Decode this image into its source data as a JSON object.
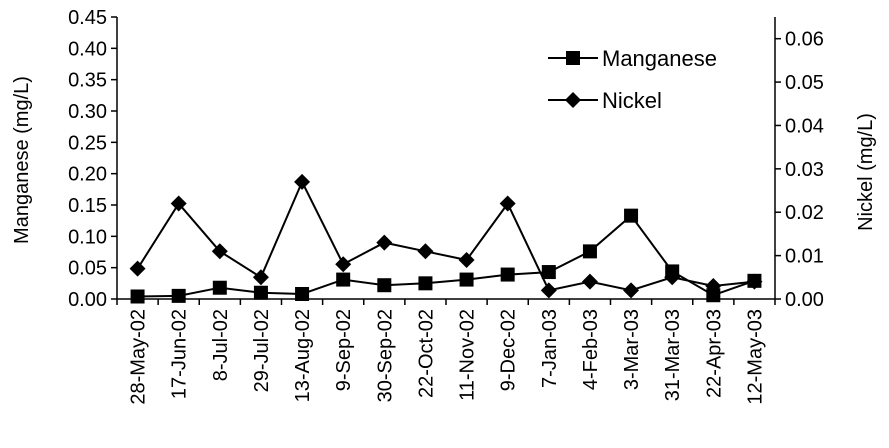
{
  "chart_data": {
    "type": "line",
    "categories": [
      "28-May-02",
      "17-Jun-02",
      "8-Jul-02",
      "29-Jul-02",
      "13-Aug-02",
      "9-Sep-02",
      "30-Sep-02",
      "22-Oct-02",
      "11-Nov-02",
      "9-Dec-02",
      "7-Jan-03",
      "4-Feb-03",
      "3-Mar-03",
      "31-Mar-03",
      "22-Apr-03",
      "12-May-03"
    ],
    "series": [
      {
        "name": "Manganese",
        "axis": "left",
        "marker": "square",
        "values": [
          0.004,
          0.005,
          0.018,
          0.01,
          0.008,
          0.031,
          0.022,
          0.025,
          0.031,
          0.039,
          0.043,
          0.076,
          0.133,
          0.044,
          0.006,
          0.029
        ]
      },
      {
        "name": "Nickel",
        "axis": "right",
        "marker": "diamond",
        "values": [
          0.007,
          0.022,
          0.011,
          0.005,
          0.027,
          0.008,
          0.013,
          0.011,
          0.009,
          0.022,
          0.002,
          0.004,
          0.002,
          0.005,
          0.003,
          0.004
        ]
      }
    ],
    "ylabel": "Manganese (mg/L)",
    "ylabel_right": "Nickel (mg/L)",
    "ylim": [
      0,
      0.45
    ],
    "ylim_right": [
      0,
      0.065
    ],
    "yticks": [
      "0.00",
      "0.05",
      "0.10",
      "0.15",
      "0.20",
      "0.25",
      "0.30",
      "0.35",
      "0.40",
      "0.45"
    ],
    "yticks_right": [
      "0.00",
      "0.01",
      "0.02",
      "0.03",
      "0.04",
      "0.05",
      "0.06"
    ],
    "grid": false,
    "legend_position": "top-right",
    "line_color": "#000000"
  }
}
